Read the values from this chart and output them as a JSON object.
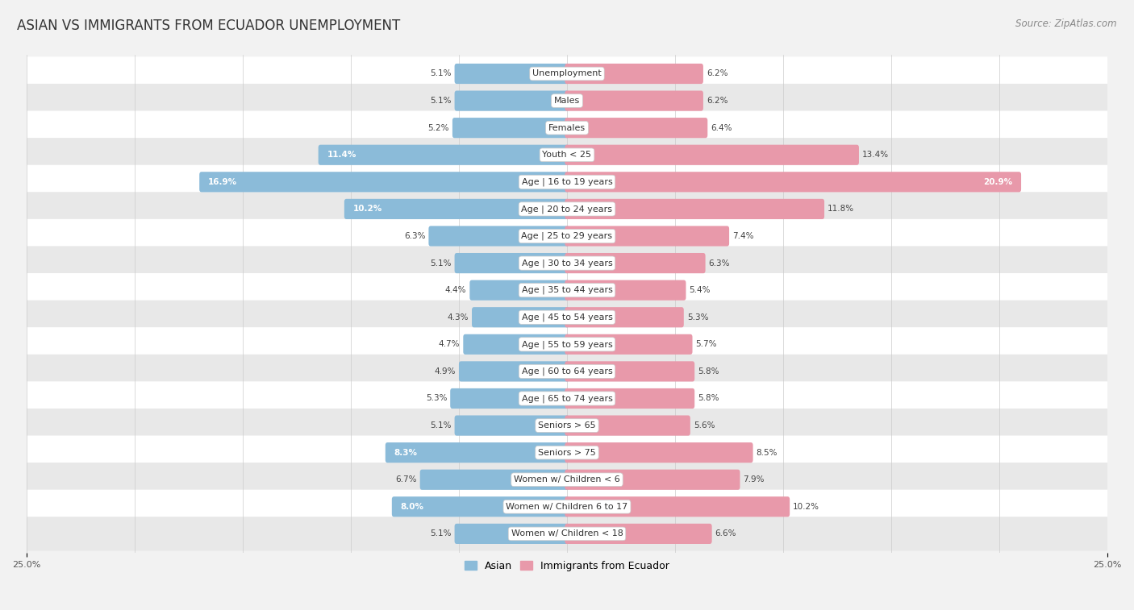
{
  "title": "ASIAN VS IMMIGRANTS FROM ECUADOR UNEMPLOYMENT",
  "source": "Source: ZipAtlas.com",
  "categories": [
    "Unemployment",
    "Males",
    "Females",
    "Youth < 25",
    "Age | 16 to 19 years",
    "Age | 20 to 24 years",
    "Age | 25 to 29 years",
    "Age | 30 to 34 years",
    "Age | 35 to 44 years",
    "Age | 45 to 54 years",
    "Age | 55 to 59 years",
    "Age | 60 to 64 years",
    "Age | 65 to 74 years",
    "Seniors > 65",
    "Seniors > 75",
    "Women w/ Children < 6",
    "Women w/ Children 6 to 17",
    "Women w/ Children < 18"
  ],
  "asian_values": [
    5.1,
    5.1,
    5.2,
    11.4,
    16.9,
    10.2,
    6.3,
    5.1,
    4.4,
    4.3,
    4.7,
    4.9,
    5.3,
    5.1,
    8.3,
    6.7,
    8.0,
    5.1
  ],
  "ecuador_values": [
    6.2,
    6.2,
    6.4,
    13.4,
    20.9,
    11.8,
    7.4,
    6.3,
    5.4,
    5.3,
    5.7,
    5.8,
    5.8,
    5.6,
    8.5,
    7.9,
    10.2,
    6.6
  ],
  "asian_color": "#8bbbd9",
  "ecuador_color": "#e899aa",
  "asian_label": "Asian",
  "ecuador_label": "Immigrants from Ecuador",
  "xlim": 25.0,
  "bg_color": "#f2f2f2",
  "row_color_even": "#ffffff",
  "row_color_odd": "#e8e8e8",
  "title_fontsize": 12,
  "source_fontsize": 8.5,
  "label_fontsize": 8.0,
  "value_fontsize": 7.5,
  "legend_fontsize": 9,
  "axis_label_fontsize": 8
}
